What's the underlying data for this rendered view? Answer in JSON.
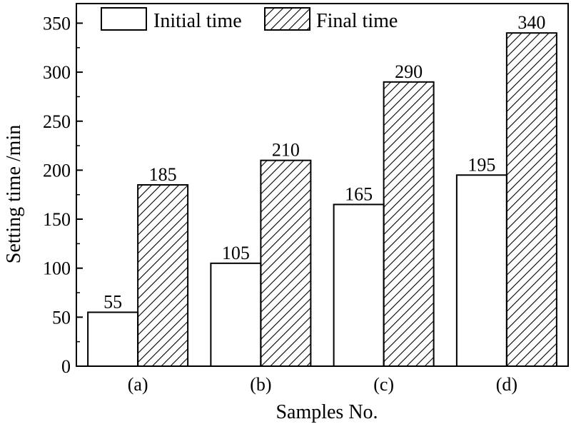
{
  "chart_data": {
    "type": "bar",
    "categories": [
      "(a)",
      "(b)",
      "(c)",
      "(d)"
    ],
    "series": [
      {
        "name": "Initial time",
        "values": [
          55,
          105,
          165,
          195
        ],
        "fill": "none"
      },
      {
        "name": "Final time",
        "values": [
          185,
          210,
          290,
          340
        ],
        "fill": "diagonal-hatch"
      }
    ],
    "title": "",
    "xlabel": "Samples No.",
    "ylabel": "Setting time /min",
    "ylim": [
      0,
      370
    ],
    "yticks": [
      0,
      50,
      100,
      150,
      200,
      250,
      300,
      350
    ],
    "grid": false,
    "legend_position": "top-center",
    "colors": {
      "bar_edge": "#000000",
      "bar_fill": "#ffffff",
      "hatch": "#000000"
    }
  }
}
